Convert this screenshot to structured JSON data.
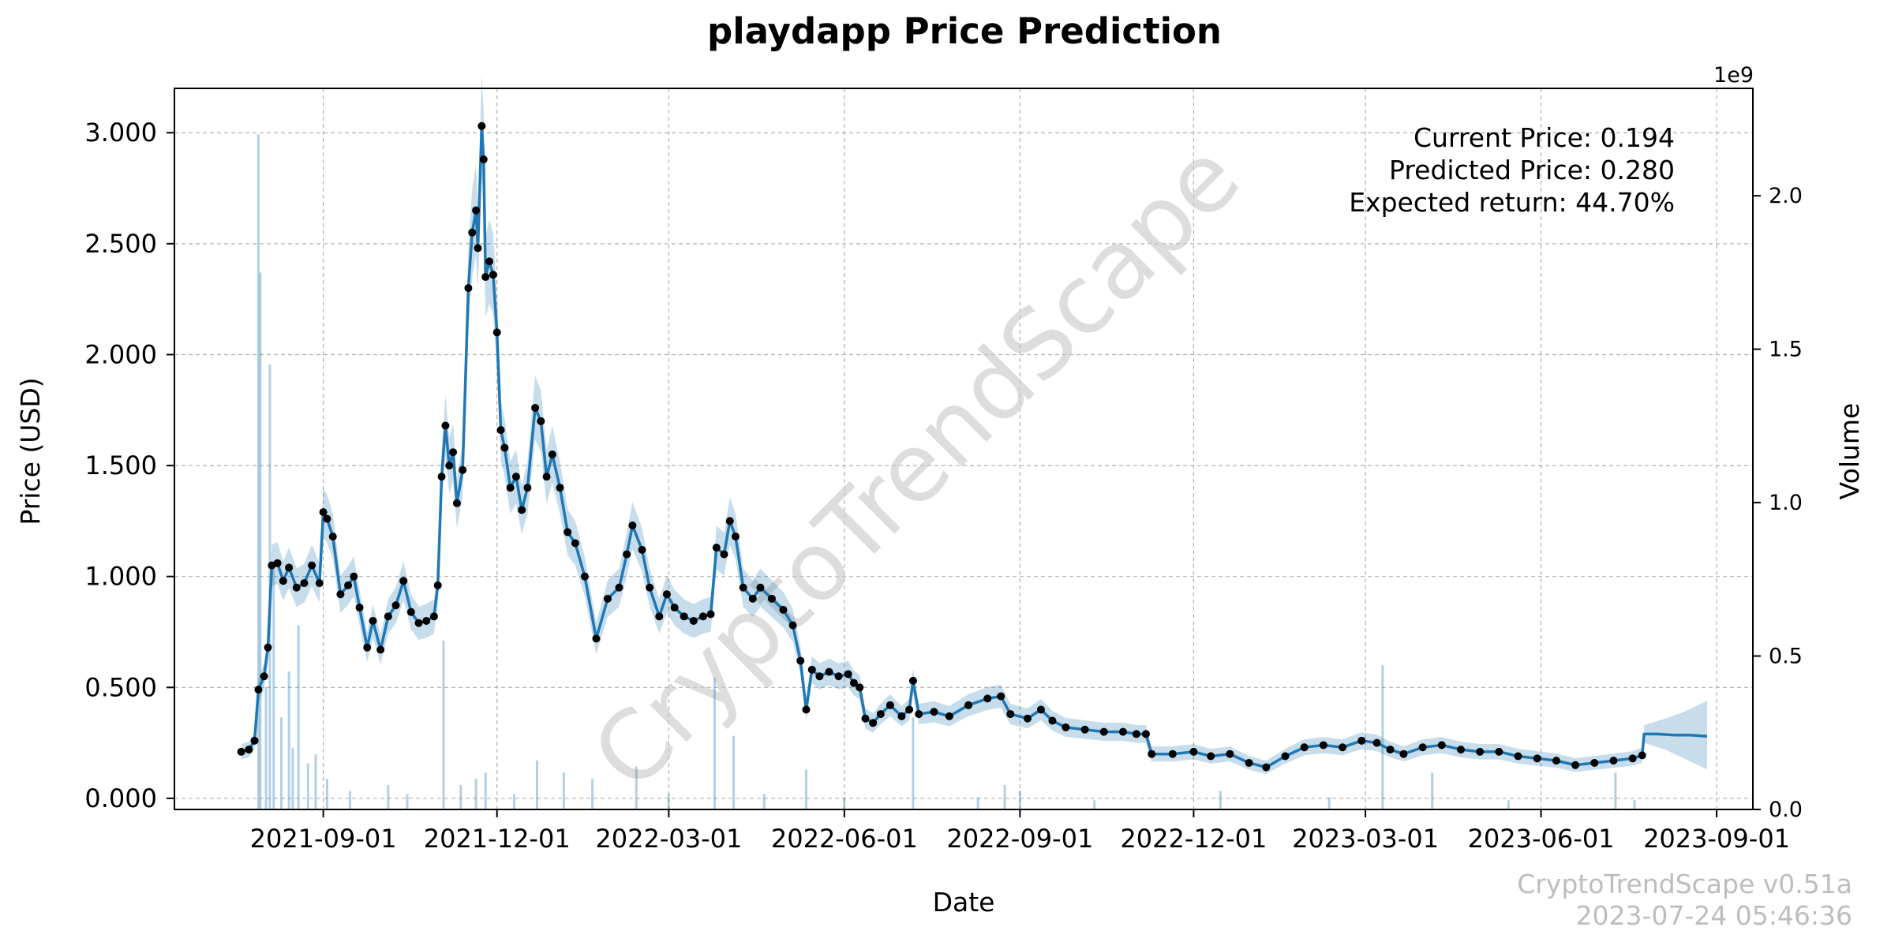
{
  "chart_data": {
    "type": "line",
    "title": "playdapp Price Prediction",
    "xlabel": "Date",
    "ylabel": "Price (USD)",
    "y2label": "Volume",
    "y2_multiplier_label": "1e9",
    "ylim": [
      -0.05,
      3.2
    ],
    "y2lim": [
      0,
      2.35
    ],
    "xlim": [
      "2021-06-15",
      "2023-09-20"
    ],
    "x_ticks": [
      "2021-09-01",
      "2021-12-01",
      "2022-03-01",
      "2022-06-01",
      "2022-09-01",
      "2022-12-01",
      "2023-03-01",
      "2023-06-01",
      "2023-09-01"
    ],
    "y_ticks": [
      "0.000",
      "0.500",
      "1.000",
      "1.500",
      "2.000",
      "2.500",
      "3.000"
    ],
    "y2_ticks": [
      "0.0",
      "0.5",
      "1.0",
      "1.5",
      "2.0"
    ],
    "grid": true,
    "series": [
      {
        "name": "Price",
        "color": "#1f77b4",
        "points": [
          [
            "2021-07-20",
            0.21
          ],
          [
            "2021-07-24",
            0.22
          ],
          [
            "2021-07-27",
            0.26
          ],
          [
            "2021-07-29",
            0.49
          ],
          [
            "2021-08-01",
            0.55
          ],
          [
            "2021-08-03",
            0.68
          ],
          [
            "2021-08-05",
            1.05
          ],
          [
            "2021-08-08",
            1.06
          ],
          [
            "2021-08-11",
            0.98
          ],
          [
            "2021-08-14",
            1.04
          ],
          [
            "2021-08-18",
            0.95
          ],
          [
            "2021-08-22",
            0.97
          ],
          [
            "2021-08-26",
            1.05
          ],
          [
            "2021-08-30",
            0.97
          ],
          [
            "2021-09-01",
            1.29
          ],
          [
            "2021-09-03",
            1.26
          ],
          [
            "2021-09-06",
            1.18
          ],
          [
            "2021-09-10",
            0.92
          ],
          [
            "2021-09-14",
            0.96
          ],
          [
            "2021-09-17",
            1.0
          ],
          [
            "2021-09-20",
            0.86
          ],
          [
            "2021-09-24",
            0.68
          ],
          [
            "2021-09-27",
            0.8
          ],
          [
            "2021-10-01",
            0.67
          ],
          [
            "2021-10-05",
            0.82
          ],
          [
            "2021-10-09",
            0.87
          ],
          [
            "2021-10-13",
            0.98
          ],
          [
            "2021-10-17",
            0.84
          ],
          [
            "2021-10-21",
            0.79
          ],
          [
            "2021-10-25",
            0.8
          ],
          [
            "2021-10-29",
            0.82
          ],
          [
            "2021-10-31",
            0.96
          ],
          [
            "2021-11-02",
            1.45
          ],
          [
            "2021-11-04",
            1.68
          ],
          [
            "2021-11-06",
            1.5
          ],
          [
            "2021-11-08",
            1.56
          ],
          [
            "2021-11-10",
            1.33
          ],
          [
            "2021-11-13",
            1.48
          ],
          [
            "2021-11-16",
            2.3
          ],
          [
            "2021-11-18",
            2.55
          ],
          [
            "2021-11-20",
            2.65
          ],
          [
            "2021-11-21",
            2.48
          ],
          [
            "2021-11-23",
            3.03
          ],
          [
            "2021-11-24",
            2.88
          ],
          [
            "2021-11-25",
            2.35
          ],
          [
            "2021-11-27",
            2.42
          ],
          [
            "2021-11-29",
            2.36
          ],
          [
            "2021-12-01",
            2.1
          ],
          [
            "2021-12-03",
            1.66
          ],
          [
            "2021-12-05",
            1.58
          ],
          [
            "2021-12-08",
            1.4
          ],
          [
            "2021-12-11",
            1.45
          ],
          [
            "2021-12-14",
            1.3
          ],
          [
            "2021-12-17",
            1.4
          ],
          [
            "2021-12-21",
            1.76
          ],
          [
            "2021-12-24",
            1.7
          ],
          [
            "2021-12-27",
            1.45
          ],
          [
            "2021-12-30",
            1.55
          ],
          [
            "2022-01-03",
            1.4
          ],
          [
            "2022-01-07",
            1.2
          ],
          [
            "2022-01-11",
            1.15
          ],
          [
            "2022-01-16",
            1.0
          ],
          [
            "2022-01-22",
            0.72
          ],
          [
            "2022-01-28",
            0.9
          ],
          [
            "2022-02-03",
            0.95
          ],
          [
            "2022-02-07",
            1.1
          ],
          [
            "2022-02-10",
            1.23
          ],
          [
            "2022-02-15",
            1.12
          ],
          [
            "2022-02-19",
            0.95
          ],
          [
            "2022-02-24",
            0.82
          ],
          [
            "2022-02-28",
            0.92
          ],
          [
            "2022-03-04",
            0.86
          ],
          [
            "2022-03-09",
            0.82
          ],
          [
            "2022-03-14",
            0.8
          ],
          [
            "2022-03-19",
            0.82
          ],
          [
            "2022-03-23",
            0.83
          ],
          [
            "2022-03-26",
            1.13
          ],
          [
            "2022-03-30",
            1.1
          ],
          [
            "2022-04-02",
            1.25
          ],
          [
            "2022-04-05",
            1.18
          ],
          [
            "2022-04-09",
            0.95
          ],
          [
            "2022-04-14",
            0.9
          ],
          [
            "2022-04-18",
            0.95
          ],
          [
            "2022-04-24",
            0.9
          ],
          [
            "2022-04-30",
            0.85
          ],
          [
            "2022-05-05",
            0.78
          ],
          [
            "2022-05-09",
            0.62
          ],
          [
            "2022-05-12",
            0.4
          ],
          [
            "2022-05-15",
            0.58
          ],
          [
            "2022-05-19",
            0.55
          ],
          [
            "2022-05-24",
            0.57
          ],
          [
            "2022-05-29",
            0.55
          ],
          [
            "2022-06-03",
            0.56
          ],
          [
            "2022-06-06",
            0.52
          ],
          [
            "2022-06-09",
            0.5
          ],
          [
            "2022-06-12",
            0.36
          ],
          [
            "2022-06-16",
            0.34
          ],
          [
            "2022-06-20",
            0.38
          ],
          [
            "2022-06-25",
            0.42
          ],
          [
            "2022-07-01",
            0.37
          ],
          [
            "2022-07-05",
            0.4
          ],
          [
            "2022-07-07",
            0.53
          ],
          [
            "2022-07-10",
            0.38
          ],
          [
            "2022-07-18",
            0.39
          ],
          [
            "2022-07-26",
            0.37
          ],
          [
            "2022-08-05",
            0.42
          ],
          [
            "2022-08-15",
            0.45
          ],
          [
            "2022-08-22",
            0.46
          ],
          [
            "2022-08-27",
            0.38
          ],
          [
            "2022-09-05",
            0.36
          ],
          [
            "2022-09-12",
            0.4
          ],
          [
            "2022-09-18",
            0.35
          ],
          [
            "2022-09-25",
            0.32
          ],
          [
            "2022-10-05",
            0.31
          ],
          [
            "2022-10-15",
            0.3
          ],
          [
            "2022-10-25",
            0.3
          ],
          [
            "2022-11-01",
            0.29
          ],
          [
            "2022-11-06",
            0.29
          ],
          [
            "2022-11-09",
            0.2
          ],
          [
            "2022-11-20",
            0.2
          ],
          [
            "2022-12-01",
            0.21
          ],
          [
            "2022-12-10",
            0.19
          ],
          [
            "2022-12-20",
            0.2
          ],
          [
            "2022-12-30",
            0.16
          ],
          [
            "2023-01-08",
            0.14
          ],
          [
            "2023-01-18",
            0.19
          ],
          [
            "2023-01-28",
            0.23
          ],
          [
            "2023-02-07",
            0.24
          ],
          [
            "2023-02-17",
            0.23
          ],
          [
            "2023-02-27",
            0.26
          ],
          [
            "2023-03-07",
            0.25
          ],
          [
            "2023-03-14",
            0.22
          ],
          [
            "2023-03-21",
            0.2
          ],
          [
            "2023-03-31",
            0.23
          ],
          [
            "2023-04-10",
            0.24
          ],
          [
            "2023-04-20",
            0.22
          ],
          [
            "2023-04-30",
            0.21
          ],
          [
            "2023-05-10",
            0.21
          ],
          [
            "2023-05-20",
            0.19
          ],
          [
            "2023-05-30",
            0.18
          ],
          [
            "2023-06-09",
            0.17
          ],
          [
            "2023-06-19",
            0.15
          ],
          [
            "2023-06-29",
            0.16
          ],
          [
            "2023-07-09",
            0.17
          ],
          [
            "2023-07-19",
            0.18
          ],
          [
            "2023-07-24",
            0.194
          ]
        ]
      },
      {
        "name": "Prediction",
        "color": "#1f77b4",
        "points": [
          [
            "2023-07-24",
            0.194
          ],
          [
            "2023-07-25",
            0.29
          ],
          [
            "2023-08-01",
            0.29
          ],
          [
            "2023-08-10",
            0.285
          ],
          [
            "2023-08-18",
            0.285
          ],
          [
            "2023-08-27",
            0.28
          ]
        ]
      }
    ],
    "prediction_band": {
      "upper": [
        [
          "2023-07-25",
          0.33
        ],
        [
          "2023-08-05",
          0.36
        ],
        [
          "2023-08-15",
          0.39
        ],
        [
          "2023-08-27",
          0.44
        ]
      ],
      "lower": [
        [
          "2023-07-25",
          0.25
        ],
        [
          "2023-08-05",
          0.22
        ],
        [
          "2023-08-15",
          0.18
        ],
        [
          "2023-08-27",
          0.13
        ]
      ]
    },
    "volume": [
      [
        "2021-07-29",
        2.2
      ],
      [
        "2021-07-30",
        1.75
      ],
      [
        "2021-08-02",
        0.4
      ],
      [
        "2021-08-04",
        1.45
      ],
      [
        "2021-08-06",
        0.8
      ],
      [
        "2021-08-10",
        0.3
      ],
      [
        "2021-08-14",
        0.45
      ],
      [
        "2021-08-16",
        0.2
      ],
      [
        "2021-08-19",
        0.6
      ],
      [
        "2021-08-24",
        0.15
      ],
      [
        "2021-08-28",
        0.18
      ],
      [
        "2021-09-03",
        0.1
      ],
      [
        "2021-09-15",
        0.06
      ],
      [
        "2021-10-05",
        0.08
      ],
      [
        "2021-10-15",
        0.05
      ],
      [
        "2021-11-03",
        0.55
      ],
      [
        "2021-11-12",
        0.08
      ],
      [
        "2021-11-20",
        0.1
      ],
      [
        "2021-11-25",
        0.12
      ],
      [
        "2021-12-10",
        0.05
      ],
      [
        "2021-12-22",
        0.16
      ],
      [
        "2022-01-05",
        0.12
      ],
      [
        "2022-01-20",
        0.1
      ],
      [
        "2022-02-12",
        0.14
      ],
      [
        "2022-03-01",
        0.05
      ],
      [
        "2022-03-25",
        0.43
      ],
      [
        "2022-04-04",
        0.24
      ],
      [
        "2022-04-20",
        0.05
      ],
      [
        "2022-05-12",
        0.13
      ],
      [
        "2022-06-01",
        0.04
      ],
      [
        "2022-07-07",
        0.3
      ],
      [
        "2022-08-10",
        0.04
      ],
      [
        "2022-08-24",
        0.08
      ],
      [
        "2022-09-01",
        0.06
      ],
      [
        "2022-10-10",
        0.03
      ],
      [
        "2022-12-15",
        0.06
      ],
      [
        "2023-02-10",
        0.04
      ],
      [
        "2023-03-10",
        0.47
      ],
      [
        "2023-04-05",
        0.12
      ],
      [
        "2023-05-15",
        0.03
      ],
      [
        "2023-07-10",
        0.12
      ],
      [
        "2023-07-20",
        0.03
      ]
    ],
    "annotations": [
      "Current Price: 0.194",
      "Predicted Price: 0.280",
      "Expected return: 44.70%"
    ],
    "watermark": "CryptoTrendScape",
    "credit_lines": [
      "CryptoTrendScape v0.51a",
      "2023-07-24 05:46:36"
    ]
  }
}
